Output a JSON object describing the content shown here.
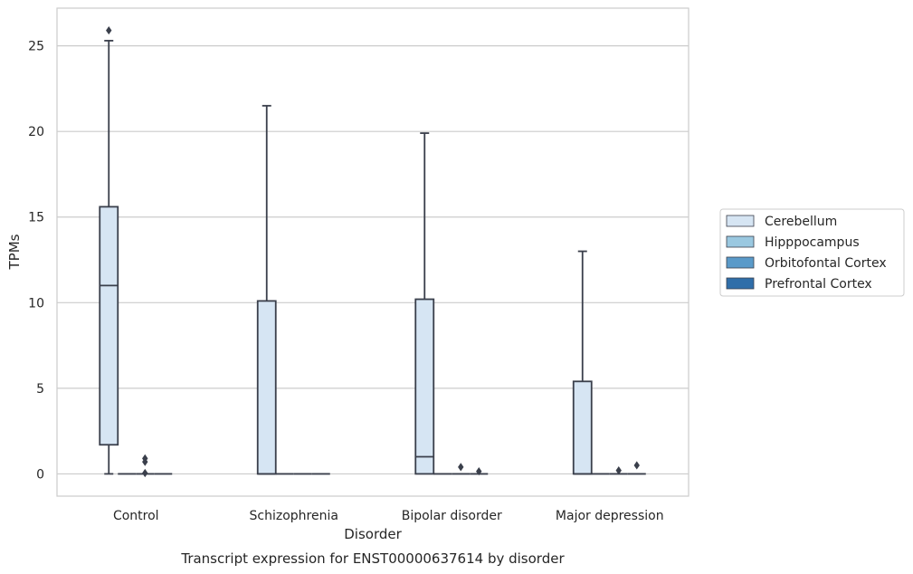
{
  "chart_data": {
    "type": "box",
    "caption": "Transcript expression for ENST00000637614 by disorder",
    "xlabel": "Disorder",
    "ylabel": "TPMs",
    "ylim": [
      -1.3,
      27.2
    ],
    "yticks": [
      0,
      5,
      10,
      15,
      20,
      25
    ],
    "grid": "horizontal",
    "legend_position": "right",
    "categories": [
      "Control",
      "Schizophrenia",
      "Bipolar disorder",
      "Major depression"
    ],
    "series": [
      {
        "name": "Cerebellum",
        "color": "#d6e5f3",
        "boxes": [
          {
            "whisker_low": 0,
            "q1": 1.7,
            "median": 11.0,
            "q3": 15.6,
            "whisker_high": 25.3,
            "outliers": [
              25.9
            ]
          },
          {
            "whisker_low": 0,
            "q1": 0,
            "median": 0,
            "q3": 10.1,
            "whisker_high": 21.5,
            "outliers": []
          },
          {
            "whisker_low": 0,
            "q1": 0,
            "median": 1.0,
            "q3": 10.2,
            "whisker_high": 19.9,
            "outliers": []
          },
          {
            "whisker_low": 0,
            "q1": 0,
            "median": 0,
            "q3": 5.4,
            "whisker_high": 13.0,
            "outliers": []
          }
        ]
      },
      {
        "name": "Hipppocampus",
        "color": "#9ac8e0",
        "boxes": [
          {
            "whisker_low": 0,
            "q1": 0,
            "median": 0,
            "q3": 0,
            "whisker_high": 0,
            "outliers": []
          },
          {
            "whisker_low": 0,
            "q1": 0,
            "median": 0,
            "q3": 0,
            "whisker_high": 0,
            "outliers": []
          },
          {
            "whisker_low": 0,
            "q1": 0,
            "median": 0,
            "q3": 0,
            "whisker_high": 0,
            "outliers": []
          },
          {
            "whisker_low": 0,
            "q1": 0,
            "median": 0,
            "q3": 0,
            "whisker_high": 0,
            "outliers": []
          }
        ]
      },
      {
        "name": "Orbitofontal Cortex",
        "color": "#5a9ac9",
        "boxes": [
          {
            "whisker_low": 0,
            "q1": 0,
            "median": 0,
            "q3": 0,
            "whisker_high": 0,
            "outliers": [
              0.9,
              0.7,
              0.05
            ]
          },
          {
            "whisker_low": 0,
            "q1": 0,
            "median": 0,
            "q3": 0,
            "whisker_high": 0,
            "outliers": []
          },
          {
            "whisker_low": 0,
            "q1": 0,
            "median": 0,
            "q3": 0,
            "whisker_high": 0,
            "outliers": [
              0.4
            ]
          },
          {
            "whisker_low": 0,
            "q1": 0,
            "median": 0,
            "q3": 0,
            "whisker_high": 0,
            "outliers": [
              0.2
            ]
          }
        ]
      },
      {
        "name": "Prefrontal Cortex",
        "color": "#2f6ea9",
        "boxes": [
          {
            "whisker_low": 0,
            "q1": 0,
            "median": 0,
            "q3": 0,
            "whisker_high": 0,
            "outliers": []
          },
          {
            "whisker_low": 0,
            "q1": 0,
            "median": 0,
            "q3": 0,
            "whisker_high": 0,
            "outliers": []
          },
          {
            "whisker_low": 0,
            "q1": 0,
            "median": 0,
            "q3": 0,
            "whisker_high": 0,
            "outliers": [
              0.15
            ]
          },
          {
            "whisker_low": 0,
            "q1": 0,
            "median": 0,
            "q3": 0,
            "whisker_high": 0,
            "outliers": [
              0.5
            ]
          }
        ]
      }
    ]
  }
}
